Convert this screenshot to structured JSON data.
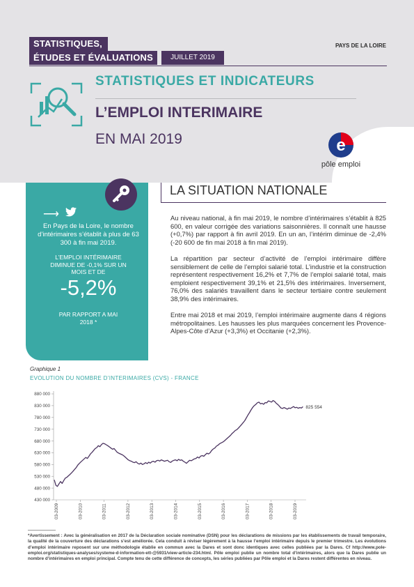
{
  "header": {
    "series_line1": "STATISTIQUES,",
    "series_line2": "ÉTUDES ET ÉVALUATIONS",
    "date": "JUILLET 2019",
    "region": "PAYS DE LA LOIRE",
    "section_title": "STATISTIQUES ET INDICATEURS",
    "title": "L’EMPLOI INTERIMAIRE",
    "subtitle": "EN MAI 2019",
    "logo_text": "pôle emploi"
  },
  "sidebar": {
    "text1": "En Pays de la Loire, le nombre d’intérimaires s’établit à plus de 63 300 à fin mai 2019.",
    "text2": "L’emploi intérimaire diminue de -0,1% sur un mois et de",
    "figure": "-5,2%",
    "text3": "PAR RAPPORT A MAI 2018 *"
  },
  "situation": {
    "title": "LA SITUATION NATIONALE",
    "p1": "Au niveau national, à fin mai 2019, le nombre d’intérimaires s’établit à 825 600, en valeur corrigée des variations saisonnières. Il connaît une hausse (+0,7%) par rapport à fin avril 2019. En un an, l’intérim diminue de -2,4% (-20 600 de fin mai 2018 à fin mai 2019).",
    "p2": "La répartition par secteur d’activité de l’emploi intérimaire diffère sensiblement de celle de l’emploi salarié total. L’industrie et la construction représentent respectivement 16,2% et 7,7% de l’emploi salarié total, mais emploient respectivement 39,1% et 21,5% des intérimaires. Inversement, 76,0% des salariés travaillent dans le secteur tertiaire contre seulement 38,9% des intérimaires.",
    "p3": "Entre mai 2018 et mai 2019, l’emploi intérimaire augmente dans 4 régions métropolitaines. Les hausses les plus marquées concernent les Provence-Alpes-Côte d’Azur (+3,3%) et Occitanie (+2,3%)."
  },
  "chart_label": "Graphique 1",
  "chart_data": {
    "type": "line",
    "title": "EVOLUTION DU NOMBRE D’INTERIMAIRES (CVS) - FRANCE",
    "ylim": [
      430000,
      880000
    ],
    "y_ticks": [
      "880 000",
      "830 000",
      "780 000",
      "730 000",
      "680 000",
      "630 000",
      "580 000",
      "530 000",
      "480 000",
      "430 000"
    ],
    "y_tick_values": [
      880000,
      830000,
      780000,
      730000,
      680000,
      630000,
      580000,
      530000,
      480000,
      430000
    ],
    "x_ticks": [
      "03-2009",
      "03-2010",
      "03-2011",
      "03-2012",
      "03-2013",
      "03-2014",
      "03-2015",
      "03-2016",
      "03-2017",
      "03-2018",
      "03-2019"
    ],
    "end_label": "825 554",
    "line_color": "#4b3460",
    "series": [
      {
        "values": [
          515000,
          492000,
          487000,
          498000,
          508000,
          500000,
          512000,
          522000,
          526000,
          532000,
          538000,
          545000,
          552000,
          560000,
          568000,
          578000,
          585000,
          592000,
          598000,
          604000,
          610000,
          606000,
          615000,
          625000,
          632000,
          640000,
          648000,
          652000,
          660000,
          656000,
          665000,
          670000,
          668000,
          664000,
          660000,
          655000,
          650000,
          645000,
          648000,
          640000,
          632000,
          628000,
          625000,
          622000,
          618000,
          612000,
          606000,
          600000,
          596000,
          594000,
          590000,
          588000,
          592000,
          585000,
          582000,
          586000,
          580000,
          583000,
          588000,
          584000,
          590000,
          586000,
          592000,
          594000,
          590000,
          596000,
          598000,
          595000,
          600000,
          597000,
          594000,
          596000,
          598000,
          592000,
          589000,
          595000,
          598000,
          600000,
          596000,
          602000,
          598000,
          600000,
          594000,
          590000,
          585000,
          592000,
          598000,
          596000,
          600000,
          604000,
          606000,
          612000,
          608000,
          616000,
          618000,
          615000,
          622000,
          628000,
          625000,
          630000,
          640000,
          646000,
          650000,
          658000,
          662000,
          668000,
          672000,
          675000,
          680000,
          686000,
          692000,
          698000,
          704000,
          712000,
          718000,
          725000,
          728000,
          735000,
          742000,
          750000,
          758000,
          766000,
          778000,
          790000,
          800000,
          812000,
          822000,
          830000,
          835000,
          842000,
          845000,
          838000,
          840000,
          836000,
          843000,
          842000,
          850000,
          848000,
          845000,
          852000,
          848000,
          840000,
          835000,
          828000,
          820000,
          818000,
          822000,
          819000,
          815000,
          820000,
          818000,
          822000,
          826000,
          821000,
          823000,
          819000,
          822000,
          820000,
          825554
        ],
        "start": "2009-01",
        "end": "2019-05"
      }
    ],
    "grid": false
  },
  "footnote": {
    "lead": "*Avertissement : ",
    "text": "Avec la généralisation en 2017 de la Déclaration sociale nominative (DSN) pour les déclarations de missions par les établissements de travail temporaire, la qualité de la couverture des déclarations s’est améliorée. Cela conduit à réviser légèrement à la hausse l’emploi intérimaire depuis le premier trimestre. Les évolutions d’emploi intérimaire reposent sur une méthodologie établie en commun avec la Dares et sont donc identiques avec celles publiées par la Dares. Cf ",
    "link": "http://www.pole-emploi.org/statistiques-analyses/systeme-d-information-ett-@5931/view-article-234.html",
    "text2": ". Pôle emploi publie un nombre total d’intérimaires, alors que la Dares publie un nombre d’intérimaires en emploi principal. Compte tenu de cette différence de concepts, les séries publiées par Pôle emploi et la Dares restent différentes en niveau."
  },
  "colors": {
    "primary": "#4b3460",
    "accent": "#3aa9a5",
    "logo_red": "#e2001a",
    "logo_blue": "#1f3d8c"
  }
}
